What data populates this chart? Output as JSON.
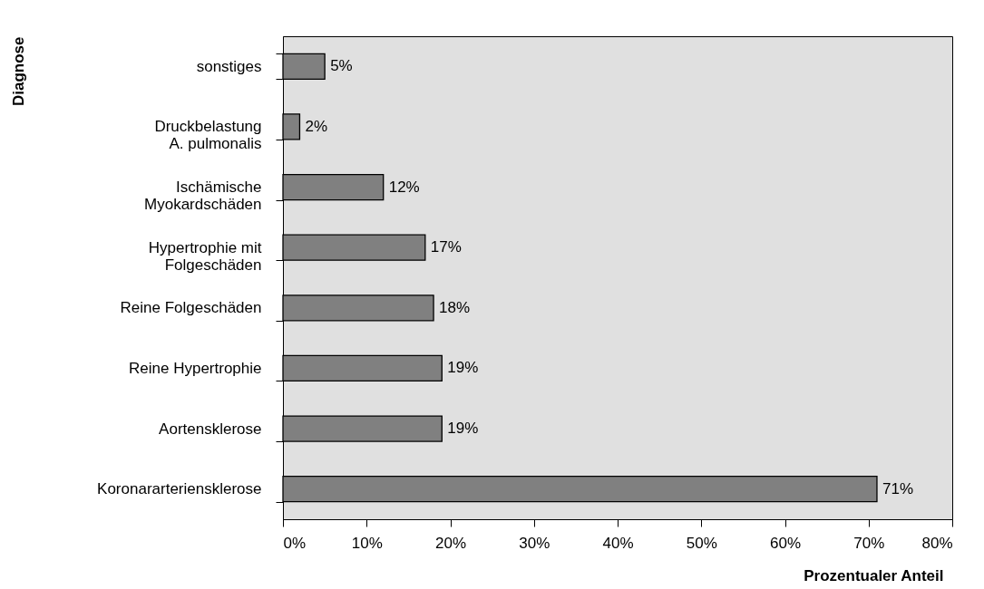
{
  "chart_data": {
    "type": "bar",
    "orientation": "horizontal",
    "xlabel": "Prozentualer Anteil",
    "ylabel": "Diagnose",
    "categories": [
      "sonstiges",
      "Druckbelastung\nA. pulmonalis",
      "Ischämische\nMyokardschäden",
      "Hypertrophie mit\nFolgeschäden",
      "Reine Folgeschäden",
      "Reine Hypertrophie",
      "Aortensklerose",
      "Koronararteriensklerose"
    ],
    "values": [
      5,
      2,
      12,
      17,
      18,
      19,
      19,
      71
    ],
    "value_labels": [
      "5%",
      "2%",
      "12%",
      "17%",
      "18%",
      "19%",
      "19%",
      "71%"
    ],
    "color": "#808080",
    "xlim": [
      0,
      80
    ],
    "xticks": [
      {
        "value": 0,
        "label": "0%"
      },
      {
        "value": 10,
        "label": "10%"
      },
      {
        "value": 20,
        "label": "20%"
      },
      {
        "value": 30,
        "label": "30%"
      },
      {
        "value": 40,
        "label": "40%"
      },
      {
        "value": 50,
        "label": "50%"
      },
      {
        "value": 60,
        "label": "60%"
      },
      {
        "value": 70,
        "label": "70%"
      },
      {
        "value": 80,
        "label": "80%"
      }
    ],
    "grid": false
  }
}
